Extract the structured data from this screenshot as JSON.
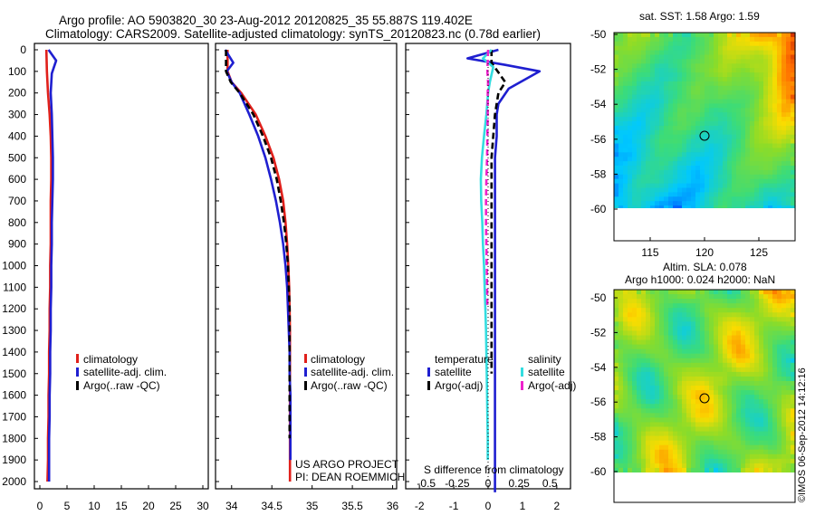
{
  "header": {
    "line1": "Argo profile: AO 5903820_30 23-Aug-2012 20120825_35 55.887S 119.402E",
    "line2": "Climatology: CARS2009. Satellite-adjusted climatology: synTS_20120823.nc (0.78d earlier)"
  },
  "depth_axis": {
    "ticks": [
      0,
      100,
      200,
      300,
      400,
      500,
      600,
      700,
      800,
      900,
      1000,
      1100,
      1200,
      1300,
      1400,
      1500,
      1600,
      1700,
      1800,
      1900,
      2000
    ]
  },
  "colors": {
    "climatology": "#e0201b",
    "satellite": "#1f1fd0",
    "argo": "#000000",
    "sal_satellite": "#33dde0",
    "sal_argo": "#ee22cc"
  },
  "panel1": {
    "xticks": [
      "0",
      "5",
      "10",
      "15",
      "20",
      "25",
      "30"
    ],
    "legend": [
      "climatology",
      "satellite-adj. clim.",
      "Argo(..raw -QC)"
    ]
  },
  "panel2": {
    "xticks": [
      "34",
      "34.5",
      "35",
      "35.5",
      "36"
    ],
    "legend": [
      "climatology",
      "satellite-adj. clim.",
      "Argo(..raw -QC)"
    ],
    "credit1": "US ARGO PROJECT",
    "credit2": "PI: DEAN ROEMMICH"
  },
  "panel3": {
    "xticks_top": [
      "-0.5",
      "-0.25",
      "0",
      "0.25",
      "0.5"
    ],
    "xticks_bottom": [
      "-2",
      "-1",
      "0",
      "1",
      "2"
    ],
    "xlabel": "S difference from climatology",
    "legend_temp_title": "temperature",
    "legend_sal_title": "salinity",
    "legend_items": [
      "satellite",
      "Argo(-adj)",
      "satellite",
      "Argo(-adj)"
    ]
  },
  "map_sst": {
    "title": "sat. SST: 1.58 Argo: 1.59",
    "yticks": [
      "-50",
      "-52",
      "-54",
      "-56",
      "-58",
      "-60"
    ],
    "xticks": [
      "115",
      "120",
      "125"
    ]
  },
  "map_sla": {
    "title1": "Altim. SLA: 0.078",
    "title2": "Argo h1000: 0.024 h2000: NaN",
    "yticks": [
      "-50",
      "-52",
      "-54",
      "-56",
      "-58",
      "-60"
    ]
  },
  "stamp": "©IMOS 06-Sep-2012 14:12:16",
  "chart_data": [
    {
      "type": "line",
      "panel": "temperature",
      "ylabel_ticks": "depth",
      "ylim": [
        2050,
        0
      ],
      "xlim": [
        -1,
        31
      ],
      "series": [
        {
          "name": "climatology",
          "x": [
            1.2,
            1.3,
            1.5,
            1.8,
            2.0,
            2.1,
            2.1,
            2.0,
            2.0,
            2.0,
            1.9,
            1.9,
            1.8,
            1.8,
            1.7,
            1.7,
            1.6,
            1.6,
            1.5,
            1.5,
            1.4
          ],
          "y": [
            0,
            100,
            200,
            300,
            400,
            500,
            600,
            700,
            800,
            900,
            1000,
            1100,
            1200,
            1300,
            1400,
            1500,
            1600,
            1700,
            1800,
            1900,
            2000
          ]
        },
        {
          "name": "satellite-adj. clim.",
          "x": [
            1.6,
            3.0,
            2.2,
            2.0,
            2.2,
            2.3,
            2.4,
            2.4,
            2.3,
            2.2,
            2.2,
            2.1,
            2.1,
            2.0,
            2.0,
            1.9,
            1.9,
            1.8,
            1.8,
            1.7,
            1.7,
            1.7
          ],
          "y": [
            0,
            50,
            110,
            200,
            300,
            400,
            500,
            600,
            700,
            800,
            900,
            1000,
            1100,
            1200,
            1300,
            1400,
            1500,
            1600,
            1700,
            1800,
            1900,
            2000
          ]
        }
      ]
    },
    {
      "type": "line",
      "panel": "salinity",
      "ylim": [
        2050,
        0
      ],
      "xlim": [
        33.8,
        36.05
      ],
      "series": [
        {
          "name": "climatology",
          "x": [
            33.95,
            33.95,
            34.0,
            34.12,
            34.3,
            34.42,
            34.52,
            34.59,
            34.64,
            34.67,
            34.69,
            34.705,
            34.715,
            34.72,
            34.725,
            34.725,
            34.725,
            34.725,
            34.725,
            34.725,
            34.725,
            34.725
          ],
          "y": [
            0,
            100,
            150,
            200,
            300,
            400,
            500,
            600,
            700,
            800,
            900,
            1000,
            1100,
            1200,
            1300,
            1400,
            1500,
            1600,
            1700,
            1800,
            1900,
            2000
          ]
        },
        {
          "name": "satellite-adj. clim.",
          "x": [
            33.92,
            34.02,
            33.94,
            34.0,
            34.1,
            34.22,
            34.33,
            34.42,
            34.49,
            34.55,
            34.6,
            34.64,
            34.67,
            34.69,
            34.7,
            34.71,
            34.72,
            34.72,
            34.73,
            34.73,
            34.73,
            34.73
          ],
          "y": [
            0,
            60,
            100,
            150,
            200,
            300,
            400,
            500,
            600,
            700,
            800,
            900,
            1000,
            1100,
            1200,
            1300,
            1400,
            1500,
            1600,
            1700,
            1800,
            1900
          ]
        },
        {
          "name": "Argo(..raw -QC)",
          "x": [
            33.93,
            33.93,
            33.99,
            34.1,
            34.27,
            34.39,
            34.49,
            34.56,
            34.61,
            34.65,
            34.68,
            34.7,
            34.71,
            34.72,
            34.72,
            34.72,
            34.72,
            34.72,
            34.72,
            34.72
          ],
          "y": [
            0,
            100,
            150,
            200,
            300,
            400,
            500,
            600,
            700,
            800,
            900,
            1000,
            1100,
            1200,
            1300,
            1400,
            1500,
            1600,
            1700,
            1800
          ]
        }
      ]
    },
    {
      "type": "line",
      "panel": "difference",
      "ylim": [
        2050,
        0
      ],
      "xlim": [
        -2.4,
        2.4
      ],
      "series": [
        {
          "name": "temperature satellite",
          "x": [
            0.3,
            -0.6,
            0.5,
            1.5,
            0.6,
            0.3,
            0.25,
            0.25,
            0.2,
            0.2,
            0.2,
            0.2,
            0.2,
            0.2,
            0.2,
            0.2,
            0.2,
            0.2,
            0.2,
            0.2,
            0.2,
            0.2,
            0.2,
            0.2,
            0.2,
            0.2
          ],
          "y": [
            0,
            40,
            70,
            100,
            180,
            250,
            300,
            400,
            500,
            600,
            700,
            800,
            900,
            1000,
            1100,
            1200,
            1300,
            1400,
            1500,
            1600,
            1700,
            1800,
            1900,
            2000,
            2030,
            2050
          ]
        },
        {
          "name": "temperature Argo(-adj)",
          "x": [
            0.1,
            0.1,
            0.5,
            0.3,
            0.2,
            0.15,
            0.1,
            0.1,
            0.1,
            0.1,
            0.1,
            0.1,
            0.1,
            0.1,
            0.1,
            0.1,
            0.1
          ],
          "y": [
            0,
            60,
            150,
            200,
            300,
            400,
            500,
            600,
            700,
            800,
            900,
            1000,
            1100,
            1200,
            1300,
            1400,
            1500
          ]
        },
        {
          "name": "salinity satellite",
          "x": [
            0.1,
            -0.15,
            0.15,
            0.05,
            0.0,
            -0.05,
            -0.12,
            -0.18,
            -0.21,
            -0.2,
            -0.17,
            -0.15,
            -0.12,
            -0.1,
            -0.08,
            -0.06,
            -0.05,
            -0.04,
            -0.03,
            -0.02,
            -0.01,
            -0.01
          ],
          "y": [
            0,
            40,
            80,
            150,
            200,
            300,
            400,
            500,
            600,
            700,
            800,
            900,
            1000,
            1100,
            1200,
            1300,
            1400,
            1500,
            1600,
            1700,
            1800,
            1900
          ]
        },
        {
          "name": "salinity Argo(-adj)",
          "x": [
            0.0,
            -0.02,
            0.0,
            -0.01,
            -0.01,
            -0.02,
            -0.03,
            -0.05,
            -0.06,
            -0.06,
            -0.05,
            -0.04,
            -0.03,
            -0.02
          ],
          "y": [
            0,
            100,
            150,
            200,
            300,
            400,
            500,
            600,
            700,
            800,
            900,
            1000,
            1100,
            1200
          ]
        }
      ]
    }
  ]
}
